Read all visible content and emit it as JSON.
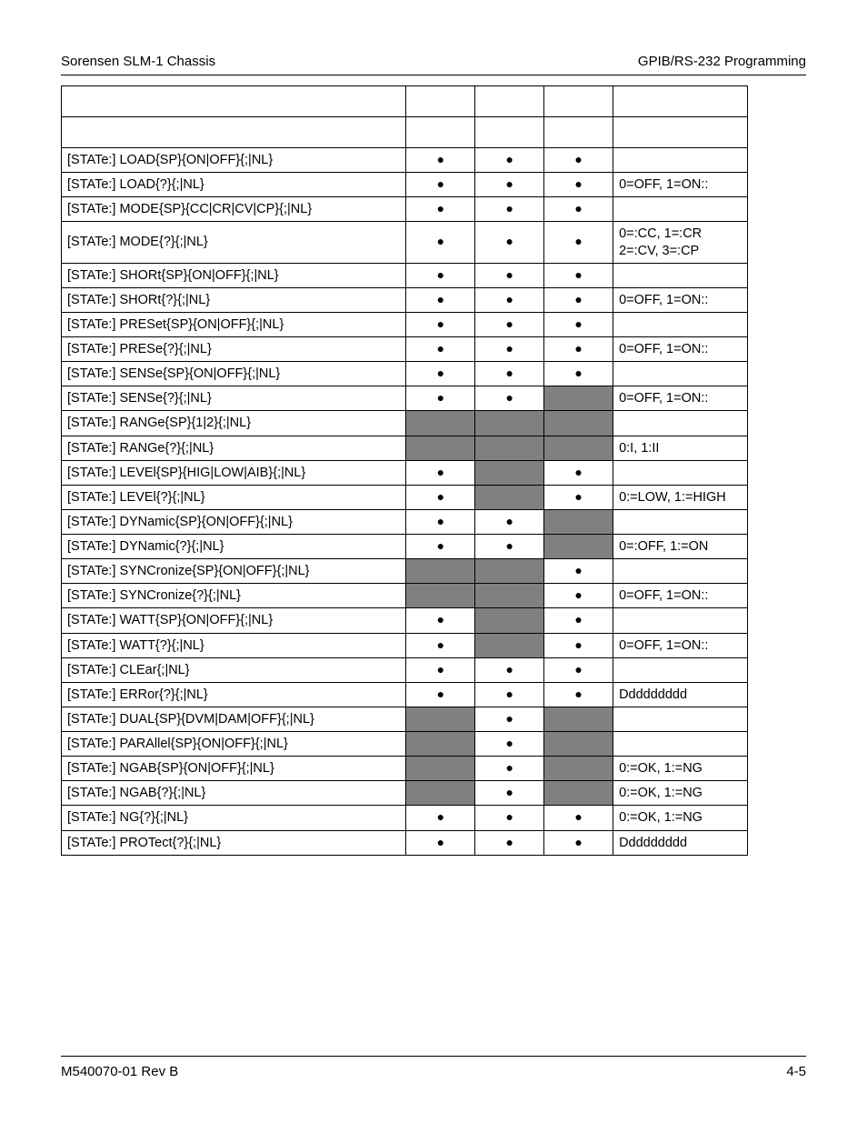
{
  "header": {
    "left": "Sorensen SLM-1 Chassis",
    "right": "GPIB/RS-232 Programming"
  },
  "footer": {
    "left": "M540070-01 Rev B",
    "right": "4-5"
  },
  "bullet_glyph": "●",
  "rows_blank": 2,
  "rows": [
    {
      "cmd": "[STATe:] LOAD{SP}{ON|OFF}{;|NL}",
      "c": [
        1,
        1,
        1,
        0,
        0,
        0
      ],
      "note": ""
    },
    {
      "cmd": "[STATe:] LOAD{?}{;|NL}",
      "c": [
        1,
        1,
        1,
        0,
        0,
        0
      ],
      "note": "0=OFF, 1=ON::"
    },
    {
      "cmd": "[STATe:] MODE{SP}{CC|CR|CV|CP}{;|NL}",
      "c": [
        1,
        1,
        1,
        0,
        0,
        0
      ],
      "note": ""
    },
    {
      "cmd": "[STATe:] MODE{?}{;|NL}",
      "c": [
        1,
        1,
        1,
        0,
        0,
        0
      ],
      "note": "0=:CC, 1=:CR 2=:CV, 3=:CP"
    },
    {
      "cmd": "[STATe:] SHORt{SP}{ON|OFF}{;|NL}",
      "c": [
        1,
        1,
        1,
        0,
        0,
        0
      ],
      "note": ""
    },
    {
      "cmd": "[STATe:] SHORt{?}{;|NL}",
      "c": [
        1,
        1,
        1,
        0,
        0,
        0
      ],
      "note": "0=OFF, 1=ON::"
    },
    {
      "cmd": "[STATe:] PRESet{SP}{ON|OFF}{;|NL}",
      "c": [
        1,
        1,
        1,
        0,
        0,
        0
      ],
      "note": ""
    },
    {
      "cmd": "[STATe:] PRESe{?}{;|NL}",
      "c": [
        1,
        1,
        1,
        0,
        0,
        0
      ],
      "note": "0=OFF, 1=ON::"
    },
    {
      "cmd": "[STATe:] SENSe{SP}{ON|OFF}{;|NL}",
      "c": [
        1,
        1,
        1,
        0,
        0,
        0
      ],
      "note": ""
    },
    {
      "cmd": "[STATe:] SENSe{?}{;|NL}",
      "c": [
        1,
        1,
        2,
        0,
        0,
        0
      ],
      "note": "0=OFF, 1=ON::"
    },
    {
      "cmd": "[STATe:] RANGe{SP}{1|2}{;|NL}",
      "c": [
        2,
        2,
        2,
        0,
        0,
        0
      ],
      "note": ""
    },
    {
      "cmd": "[STATe:] RANGe{?}{;|NL}",
      "c": [
        2,
        2,
        2,
        0,
        0,
        0
      ],
      "note": "0:I, 1:II"
    },
    {
      "cmd": "[STATe:] LEVEl{SP}{HIG|LOW|AIB}{;|NL}",
      "c": [
        1,
        2,
        1,
        0,
        0,
        0
      ],
      "note": ""
    },
    {
      "cmd": "[STATe:] LEVEl{?}{;|NL}",
      "c": [
        1,
        2,
        1,
        0,
        0,
        0
      ],
      "note": "0:=LOW, 1:=HIGH"
    },
    {
      "cmd": "[STATe:] DYNamic{SP}{ON|OFF}{;|NL}",
      "c": [
        1,
        1,
        2,
        0,
        0,
        0
      ],
      "note": ""
    },
    {
      "cmd": "[STATe:] DYNamic{?}{;|NL}",
      "c": [
        1,
        1,
        2,
        0,
        0,
        0
      ],
      "note": "0=:OFF, 1:=ON"
    },
    {
      "cmd": "[STATe:] SYNCronize{SP}{ON|OFF}{;|NL}",
      "c": [
        2,
        2,
        1,
        0,
        0,
        0
      ],
      "note": ""
    },
    {
      "cmd": "[STATe:] SYNCronize{?}{;|NL}",
      "c": [
        2,
        2,
        1,
        0,
        0,
        0
      ],
      "note": "0=OFF, 1=ON::"
    },
    {
      "cmd": "[STATe:] WATT{SP}{ON|OFF}{;|NL}",
      "c": [
        1,
        2,
        1,
        0,
        0,
        0
      ],
      "note": ""
    },
    {
      "cmd": "[STATe:] WATT{?}{;|NL}",
      "c": [
        1,
        2,
        1,
        0,
        0,
        0
      ],
      "note": "0=OFF, 1=ON::"
    },
    {
      "cmd": "[STATe:] CLEar{;|NL}",
      "c": [
        1,
        1,
        1,
        0,
        0,
        0
      ],
      "note": ""
    },
    {
      "cmd": "[STATe:] ERRor{?}{;|NL}",
      "c": [
        1,
        1,
        1,
        0,
        0,
        0
      ],
      "note": "Ddddddddd"
    },
    {
      "cmd": "[STATe:] DUAL{SP}{DVM|DAM|OFF}{;|NL}",
      "c": [
        2,
        1,
        2,
        0,
        0,
        0
      ],
      "note": ""
    },
    {
      "cmd": "[STATe:] PARAllel{SP}{ON|OFF}{;|NL}",
      "c": [
        2,
        1,
        2,
        0,
        0,
        0
      ],
      "note": ""
    },
    {
      "cmd": "[STATe:] NGAB{SP}{ON|OFF}{;|NL}",
      "c": [
        2,
        1,
        2,
        0,
        0,
        0
      ],
      "note": "0:=OK, 1:=NG"
    },
    {
      "cmd": "[STATe:] NGAB{?}{;|NL}",
      "c": [
        2,
        1,
        2,
        0,
        0,
        0
      ],
      "note": "0:=OK, 1:=NG"
    },
    {
      "cmd": "[STATe:] NG{?}{;|NL}",
      "c": [
        1,
        1,
        1,
        0,
        0,
        0
      ],
      "note": "0:=OK, 1:=NG"
    },
    {
      "cmd": "[STATe:] PROTect{?}{;|NL}",
      "c": [
        1,
        1,
        1,
        0,
        0,
        0
      ],
      "note": "Ddddddddd"
    }
  ]
}
